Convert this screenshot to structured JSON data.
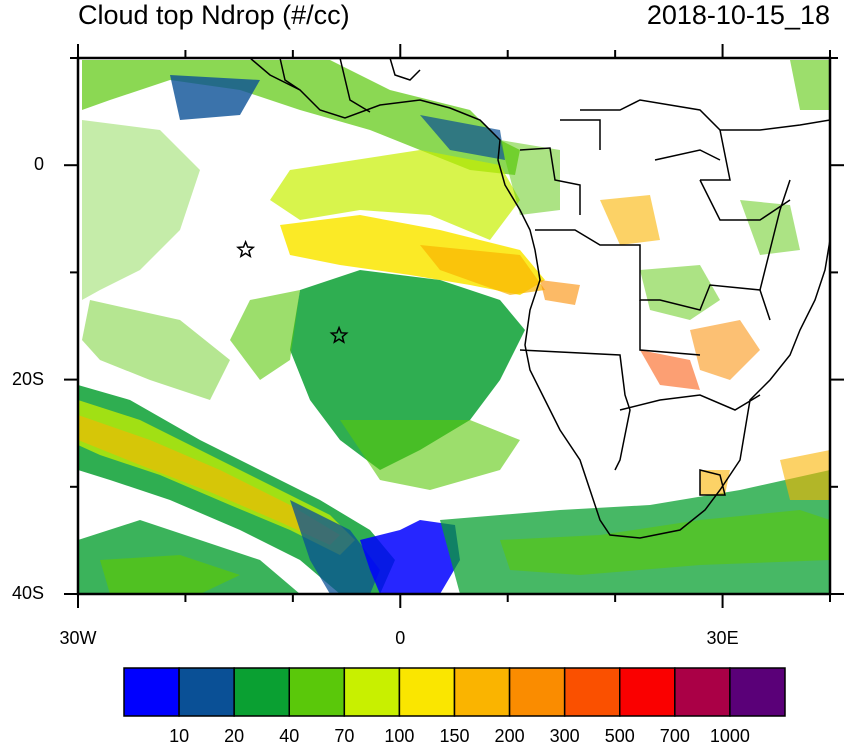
{
  "header": {
    "title": "Cloud top Ndrop (#/cc)",
    "datetime": "2018-10-15_18"
  },
  "map": {
    "lon_range": [
      -30,
      40
    ],
    "lat_range": [
      -40,
      10
    ],
    "lon_ticks": [
      {
        "value": -30,
        "label": "30W"
      },
      {
        "value": 0,
        "label": "0"
      },
      {
        "value": 30,
        "label": "30E"
      }
    ],
    "lat_ticks": [
      {
        "value": 0,
        "label": "0"
      },
      {
        "value": -20,
        "label": "20S"
      },
      {
        "value": -40,
        "label": "40S"
      }
    ],
    "markers": [
      {
        "name": "star-marker-ascension",
        "lon": -14.4,
        "lat": -7.9
      },
      {
        "name": "star-marker-st-helena",
        "lon": -5.7,
        "lat": -15.9
      }
    ]
  },
  "colorbar": {
    "colors": [
      "#0000ff",
      "#0a5096",
      "#0aa032",
      "#5ac80a",
      "#c8f000",
      "#fae600",
      "#fab400",
      "#fa8c00",
      "#fa5000",
      "#fa0000",
      "#aa0046",
      "#5a0078"
    ],
    "labels": [
      "10",
      "20",
      "40",
      "70",
      "100",
      "150",
      "200",
      "300",
      "500",
      "700",
      "1000"
    ]
  },
  "colors": {
    "ocean": "#ffffff",
    "coast": "#000000"
  }
}
